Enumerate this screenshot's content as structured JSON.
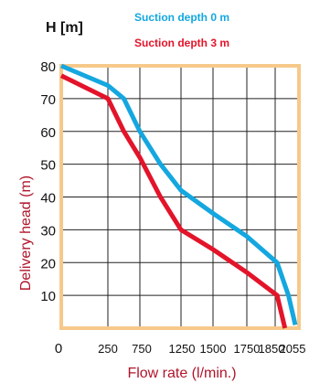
{
  "chart_data": {
    "type": "line",
    "unit_label": "H [m]",
    "xlabel": "Flow rate (l/min.)",
    "ylabel": "Delivery head (m)",
    "x_ticks": [
      "0",
      "250",
      "750",
      "1250",
      "1500",
      "1750",
      "1850",
      "2055"
    ],
    "y_ticks": [
      "10",
      "20",
      "30",
      "40",
      "50",
      "60",
      "70",
      "80"
    ],
    "ylim": [
      0,
      80
    ],
    "grid": true,
    "legend_position": "top-right",
    "frame_color": "#f6c98a",
    "series": [
      {
        "name": "Suction depth 0 m",
        "color": "#14a7e0",
        "points": [
          [
            0,
            80
          ],
          [
            250,
            74
          ],
          [
            500,
            70
          ],
          [
            750,
            60
          ],
          [
            1000,
            50
          ],
          [
            1250,
            42
          ],
          [
            1500,
            35
          ],
          [
            1750,
            28
          ],
          [
            1870,
            20
          ],
          [
            1985,
            10
          ],
          [
            2055,
            1
          ]
        ]
      },
      {
        "name": "Suction depth 3 m",
        "color": "#e3142a",
        "points": [
          [
            0,
            77
          ],
          [
            250,
            70
          ],
          [
            500,
            60
          ],
          [
            750,
            52
          ],
          [
            1000,
            40
          ],
          [
            1250,
            30
          ],
          [
            1500,
            24
          ],
          [
            1750,
            17
          ],
          [
            1870,
            10
          ],
          [
            1950,
            0
          ]
        ]
      }
    ]
  }
}
